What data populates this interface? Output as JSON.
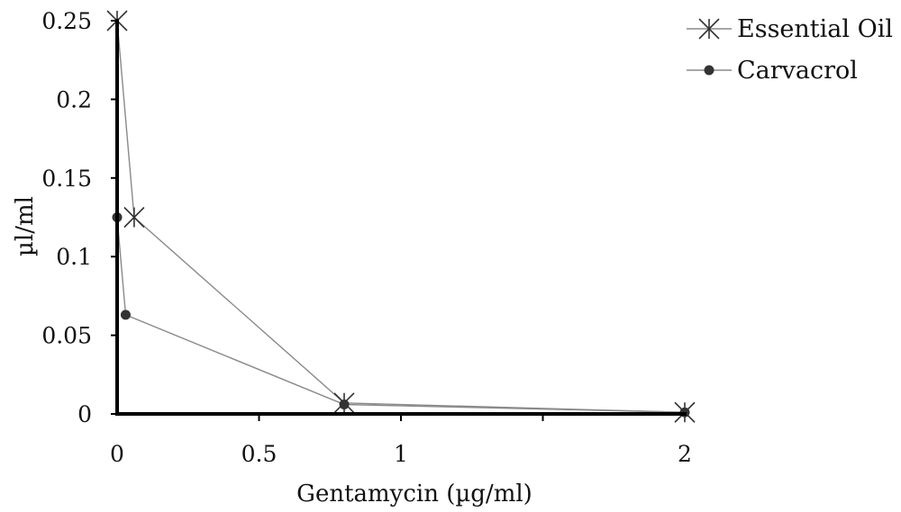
{
  "chart_data": {
    "type": "line",
    "title": "",
    "xlabel": "Gentamycin (µg/ml)",
    "ylabel": "µl/ml",
    "xlim": [
      0,
      2
    ],
    "ylim": [
      0,
      0.25
    ],
    "x_ticks": [
      {
        "value": 0,
        "label": "0"
      },
      {
        "value": 0.5,
        "label": "0.5"
      },
      {
        "value": 1,
        "label": "1"
      },
      {
        "value": 2,
        "label": "2"
      }
    ],
    "y_ticks": [
      {
        "value": 0,
        "label": "0"
      },
      {
        "value": 0.05,
        "label": "0.05"
      },
      {
        "value": 0.1,
        "label": "0.1"
      },
      {
        "value": 0.15,
        "label": "0.15"
      },
      {
        "value": 0.2,
        "label": "0.2"
      },
      {
        "value": 0.25,
        "label": "0.25"
      }
    ],
    "grid": false,
    "legend_position": "top-right",
    "series": [
      {
        "name": "Essential Oil",
        "marker": "asterisk",
        "points": [
          [
            0,
            0.25
          ],
          [
            0.06,
            0.125
          ],
          [
            0.8,
            0.007
          ],
          [
            2,
            0.001
          ]
        ]
      },
      {
        "name": "Carvacrol",
        "marker": "circle",
        "points": [
          [
            0,
            0.125
          ],
          [
            0.03,
            0.063
          ],
          [
            0.8,
            0.006
          ],
          [
            2,
            0.001
          ]
        ]
      }
    ]
  },
  "colors": {
    "line": "#8a8a8a",
    "axis": "#000000",
    "marker": "#333333"
  }
}
